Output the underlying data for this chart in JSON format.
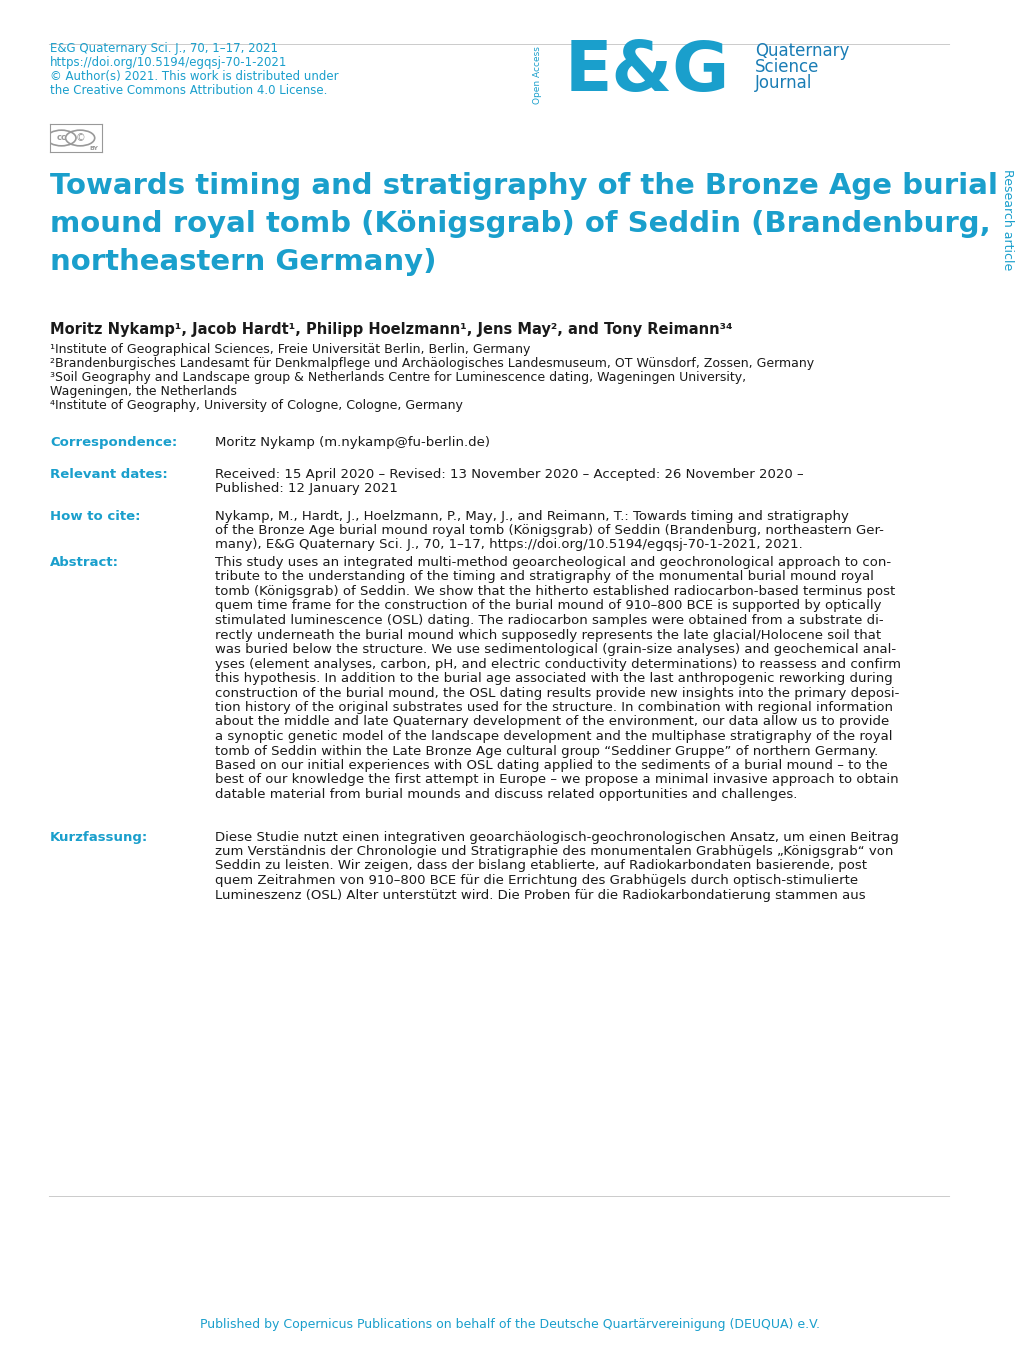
{
  "blue_color": "#1a9fcc",
  "dark_blue": "#1a7db5",
  "text_color": "#1a1a1a",
  "background_color": "#ffffff",
  "header_journal_line1": "E&G Quaternary Sci. J., 70, 1–17, 2021",
  "header_journal_line2": "https://doi.org/10.5194/egqsj-70-1-2021",
  "header_journal_line3": "© Author(s) 2021. This work is distributed under",
  "header_journal_line4": "the Creative Commons Attribution 4.0 License.",
  "journal_name_line1": "Quaternary",
  "journal_name_line2": "Science",
  "journal_name_line3": "Journal",
  "open_access_text": "Open Access",
  "research_article_text": "Research article",
  "main_title_line1": "Towards timing and stratigraphy of the Bronze Age burial",
  "main_title_line2": "mound royal tomb (Königsgrab) of Seddin (Brandenburg,",
  "main_title_line3": "northeastern Germany)",
  "authors": "Moritz Nykamp¹, Jacob Hardt¹, Philipp Hoelzmann¹, Jens May², and Tony Reimann³⁴",
  "affil1": "¹Institute of Geographical Sciences, Freie Universität Berlin, Berlin, Germany",
  "affil2": "²Brandenburgisches Landesamt für Denkmalpflege und Archäologisches Landesmuseum, OT Wünsdorf, Zossen, Germany",
  "affil3a": "³Soil Geography and Landscape group & Netherlands Centre for Luminescence dating, Wageningen University,",
  "affil3b": "Wageningen, the Netherlands",
  "affil4": "⁴Institute of Geography, University of Cologne, Cologne, Germany",
  "corr_label": "Correspondence:",
  "corr_text": "Moritz Nykamp (m.nykamp@fu-berlin.de)",
  "dates_label": "Relevant dates:",
  "dates_line1": "Received: 15 April 2020 – Revised: 13 November 2020 – Accepted: 26 November 2020 –",
  "dates_line2": "Published: 12 January 2021",
  "cite_label": "How to cite:",
  "cite_line1": "Nykamp, M., Hardt, J., Hoelzmann, P., May, J., and Reimann, T.: Towards timing and stratigraphy",
  "cite_line2": "of the Bronze Age burial mound royal tomb (Königsgrab) of Seddin (Brandenburg, northeastern Ger-",
  "cite_line3": "many), E&G Quaternary Sci. J., 70, 1–17, https://doi.org/10.5194/egqsj-70-1-2021, 2021.",
  "abstract_label": "Abstract:",
  "abstract_lines": [
    "This study uses an integrated multi-method geoarcheological and geochronological approach to con-",
    "tribute to the understanding of the timing and stratigraphy of the monumental burial mound royal",
    "tomb (Königsgrab) of Seddin. We show that the hitherto established radiocarbon-based terminus post",
    "quem time frame for the construction of the burial mound of 910–800 BCE is supported by optically",
    "stimulated luminescence (OSL) dating. The radiocarbon samples were obtained from a substrate di-",
    "rectly underneath the burial mound which supposedly represents the late glacial/Holocene soil that",
    "was buried below the structure. We use sedimentological (grain-size analyses) and geochemical anal-",
    "yses (element analyses, carbon, pH, and electric conductivity determinations) to reassess and confirm",
    "this hypothesis. In addition to the burial age associated with the last anthropogenic reworking during",
    "construction of the burial mound, the OSL dating results provide new insights into the primary deposi-",
    "tion history of the original substrates used for the structure. In combination with regional information",
    "about the middle and late Quaternary development of the environment, our data allow us to provide",
    "a synoptic genetic model of the landscape development and the multiphase stratigraphy of the royal",
    "tomb of Seddin within the Late Bronze Age cultural group “Seddiner Gruppe” of northern Germany.",
    "Based on our initial experiences with OSL dating applied to the sediments of a burial mound – to the",
    "best of our knowledge the first attempt in Europe – we propose a minimal invasive approach to obtain",
    "datable material from burial mounds and discuss related opportunities and challenges."
  ],
  "kurzfassung_label": "Kurzfassung:",
  "kurzfassung_lines": [
    "Diese Studie nutzt einen integrativen geoarchäologisch-geochronologischen Ansatz, um einen Beitrag",
    "zum Verständnis der Chronologie und Stratigraphie des monumentalen Grabhügels „Königsgrab“ von",
    "Seddin zu leisten. Wir zeigen, dass der bislang etablierte, auf Radiokarbondaten basierende, post",
    "quem Zeitrahmen von 910–800 BCE für die Errichtung des Grabhügels durch optisch-stimulierte",
    "Lumineszenz (OSL) Alter unterstützt wird. Die Proben für die Radiokarbondatierung stammen aus"
  ],
  "footer_text": "Published by Copernicus Publications on behalf of the Deutsche Quartärvereinigung (DEUQUA) e.V."
}
